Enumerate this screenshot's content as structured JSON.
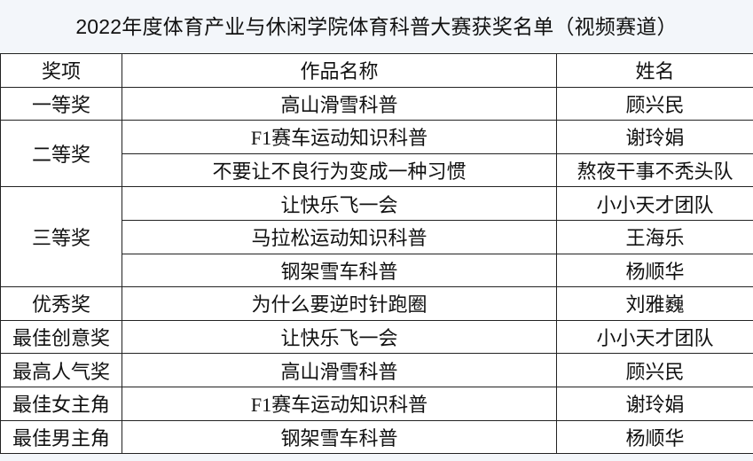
{
  "title": "2022年度体育产业与休闲学院体育科普大赛获奖名单（视频赛道）",
  "headers": [
    "奖项",
    "作品名称",
    "姓名"
  ],
  "rows": [
    {
      "award": "一等奖",
      "work": "高山滑雪科普",
      "name": "顾兴民"
    },
    {
      "award": "二等奖",
      "work": "F1赛车运动知识科普",
      "name": "谢玲娟"
    },
    {
      "award": "",
      "work": "不要让不良行为变成一种习惯",
      "name": "熬夜干事不秃头队"
    },
    {
      "award": "三等奖",
      "work": "让快乐飞一会",
      "name": "小小天才团队"
    },
    {
      "award": "",
      "work": "马拉松运动知识科普",
      "name": "王海乐"
    },
    {
      "award": "",
      "work": "钢架雪车科普",
      "name": "杨顺华"
    },
    {
      "award": "优秀奖",
      "work": "为什么要逆时针跑圈",
      "name": "刘雅巍"
    },
    {
      "award": "最佳创意奖",
      "work": "让快乐飞一会",
      "name": "小小天才团队"
    },
    {
      "award": "最高人气奖",
      "work": "高山滑雪科普",
      "name": "顾兴民"
    },
    {
      "award": "最佳女主角",
      "work": "F1赛车运动知识科普",
      "name": "谢玲娟"
    },
    {
      "award": "最佳男主角",
      "work": "钢架雪车科普",
      "name": "杨顺华"
    }
  ]
}
